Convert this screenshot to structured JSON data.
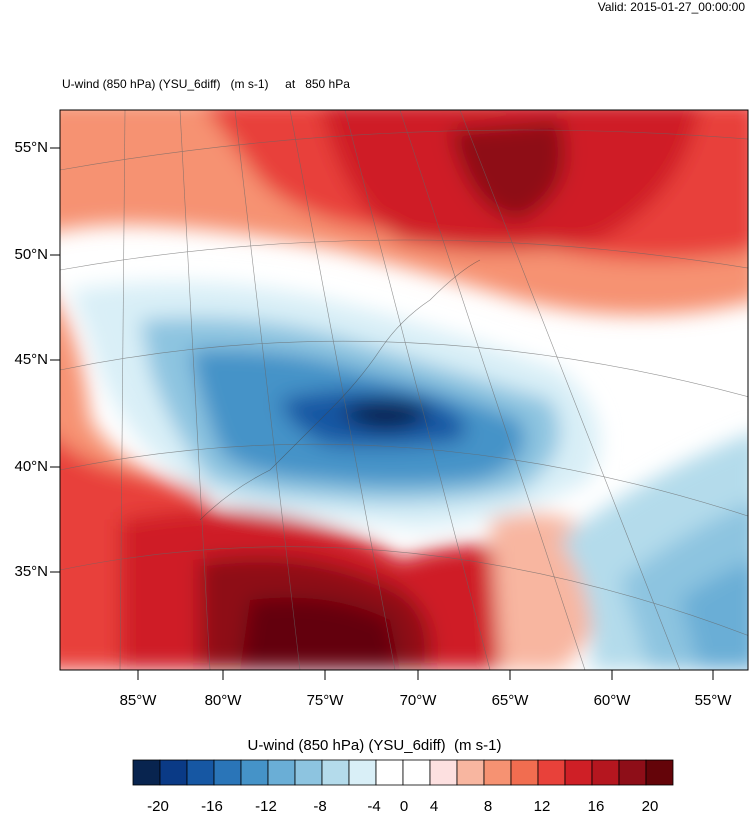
{
  "valid_text": "Valid: 2015-01-27_00:00:00",
  "plot_title": "U-wind (850 hPa) (YSU_6diff)   (m s-1)     at   850 hPa",
  "lat_labels": [
    "55°N",
    "50°N",
    "45°N",
    "40°N",
    "35°N"
  ],
  "lon_labels": [
    "85°W",
    "80°W",
    "75°W",
    "70°W",
    "65°W",
    "60°W",
    "55°W"
  ],
  "colorbar": {
    "title": "U-wind (850 hPa) (YSU_6diff)  (m s-1)",
    "colors": [
      "#08244f",
      "#0a3a86",
      "#1657a3",
      "#2a75b8",
      "#4593c8",
      "#6aaed6",
      "#8dc4e0",
      "#b4dbeb",
      "#d9eff7",
      "#ffffff",
      "#ffffff",
      "#fde0e0",
      "#f8b6a0",
      "#f69272",
      "#f16d50",
      "#e8413a",
      "#cf1f26",
      "#b5161f",
      "#8e0e18",
      "#640409"
    ],
    "labels": [
      "-20",
      "-16",
      "-12",
      "-8",
      "-4",
      "0",
      "4",
      "8",
      "12",
      "16",
      "20"
    ]
  }
}
